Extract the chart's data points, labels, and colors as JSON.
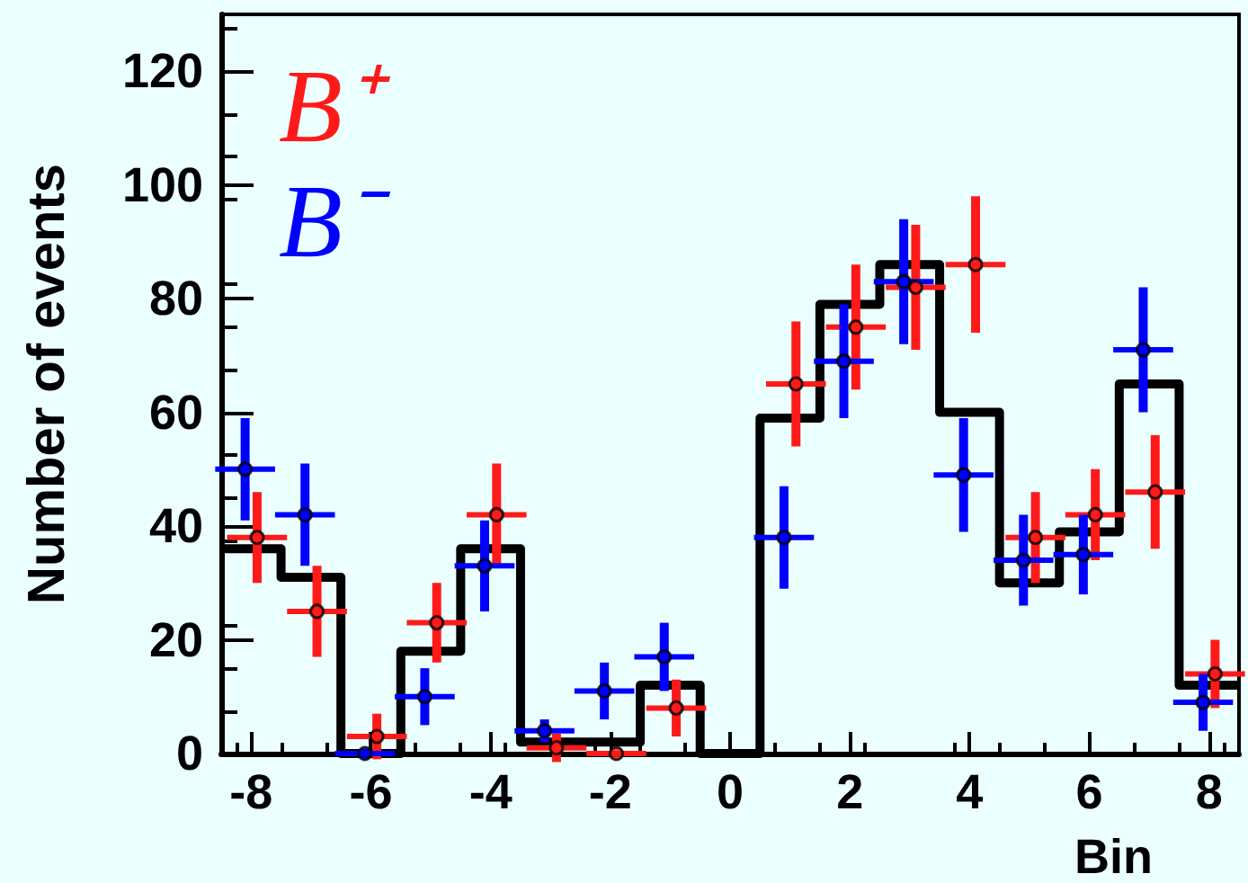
{
  "chart_data": {
    "type": "histogram",
    "xlabel": "Bin",
    "ylabel": "Number of events",
    "xlim": [
      -8.5,
      8.5
    ],
    "xticks": [
      -8,
      -6,
      -4,
      -2,
      0,
      2,
      4,
      6,
      8
    ],
    "ylim": [
      0,
      130
    ],
    "yticks": [
      0,
      20,
      40,
      60,
      80,
      100,
      120
    ],
    "legend": "top left",
    "marker": "circle",
    "series": [
      {
        "color": "#000000",
        "bins": [
          -8.5,
          -7.5,
          -6.5,
          -5.5,
          -4.5,
          -3.5,
          -2.5,
          -1.5,
          -0.5,
          0.5,
          1.5,
          2.5,
          3.5,
          4.5,
          5.5,
          6.5,
          7.5,
          8.5
        ],
        "values": [
          36,
          31,
          0,
          18,
          36,
          2,
          2,
          12,
          0,
          59,
          79,
          86,
          60,
          30,
          39,
          65,
          12
        ]
      },
      {
        "type": "scatter",
        "name": "B⁺",
        "color": "#ff1a1a",
        "x": [
          -7.9,
          -6.9,
          -5.9,
          -4.9,
          -3.9,
          -2.9,
          -1.9,
          -0.9,
          1.1,
          2.1,
          3.1,
          4.1,
          5.1,
          6.1,
          7.1,
          8.1
        ],
        "values": [
          38,
          25,
          3,
          23,
          42,
          1,
          0,
          8,
          65,
          75,
          82,
          86,
          38,
          42,
          46,
          14
        ],
        "errors": [
          8,
          8,
          4,
          7,
          9,
          2.5,
          null,
          5,
          11,
          11,
          11,
          12,
          8,
          8,
          10,
          6
        ],
        "xerrors": [
          0.5,
          0.5,
          0.5,
          0.5,
          0.5,
          0.5,
          0.5,
          0.5,
          0.5,
          0.5,
          0.5,
          0.5,
          0.5,
          0.5,
          0.5,
          0.5
        ]
      },
      {
        "type": "scatter",
        "name": "B⁻",
        "color": "#0000ff",
        "x": [
          -8.1,
          -7.1,
          -6.1,
          -5.1,
          -4.1,
          -3.1,
          -2.1,
          -1.1,
          0.9,
          1.9,
          2.9,
          3.9,
          4.9,
          5.9,
          6.9,
          7.9
        ],
        "values": [
          50,
          42,
          0,
          10,
          33,
          4,
          11,
          17,
          38,
          69,
          83,
          49,
          34,
          35,
          71,
          9
        ],
        "errors": [
          9,
          9,
          null,
          5,
          8,
          2,
          5,
          6,
          9,
          10,
          11,
          10,
          8,
          7,
          11,
          5
        ],
        "xerrors": [
          0.5,
          0.5,
          0.5,
          0.5,
          0.5,
          0.5,
          0.5,
          0.5,
          0.5,
          0.5,
          0.5,
          0.5,
          0.5,
          0.5,
          0.5,
          0.5
        ]
      }
    ]
  }
}
